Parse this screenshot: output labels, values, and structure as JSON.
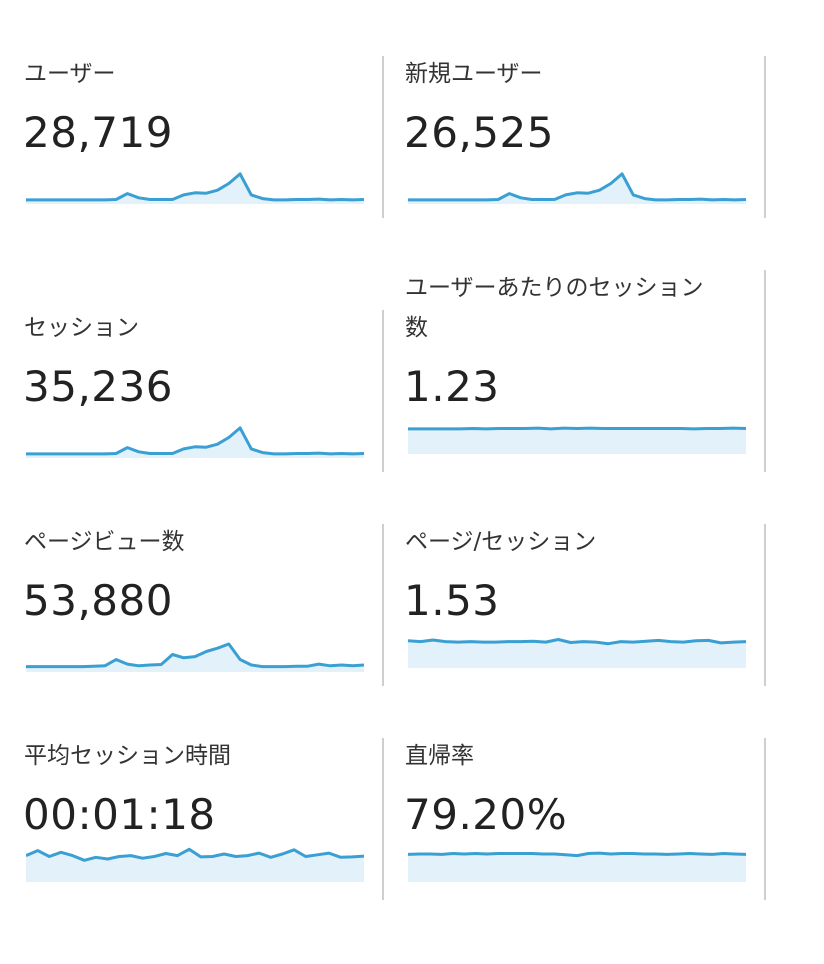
{
  "colors": {
    "line": "#3a9fd2",
    "fill": "#e3f1fa",
    "divider": "#cfcfcf"
  },
  "metrics": [
    {
      "label": "ユーザー",
      "value": "28,719",
      "spark": [
        5,
        5,
        5,
        5,
        5,
        5,
        5,
        5,
        6,
        20,
        10,
        6,
        6,
        6,
        17,
        22,
        21,
        28,
        44,
        67,
        17,
        8,
        5,
        5,
        6,
        6,
        7,
        5,
        6,
        5,
        6
      ]
    },
    {
      "label": "新規ユーザー",
      "value": "26,525",
      "spark": [
        5,
        5,
        5,
        5,
        5,
        5,
        5,
        5,
        6,
        20,
        10,
        6,
        6,
        6,
        17,
        22,
        21,
        28,
        44,
        67,
        17,
        8,
        5,
        5,
        6,
        6,
        7,
        5,
        6,
        5,
        6
      ]
    },
    {
      "label": "セッション",
      "value": "35,236",
      "spark": [
        5,
        5,
        5,
        5,
        5,
        5,
        5,
        5,
        6,
        20,
        10,
        6,
        6,
        6,
        17,
        22,
        21,
        28,
        44,
        67,
        17,
        8,
        5,
        5,
        6,
        6,
        7,
        5,
        6,
        5,
        6
      ]
    },
    {
      "label_lines": [
        "ユーザーあたりのセッション",
        "数"
      ],
      "value": "1.23",
      "spark": [
        55,
        55,
        55,
        55,
        55,
        56,
        55,
        56,
        56,
        56,
        57,
        55,
        57,
        56,
        57,
        56,
        56,
        56,
        56,
        56,
        56,
        56,
        55,
        56,
        56,
        57,
        56
      ]
    },
    {
      "label": "ページビュー数",
      "value": "53,880",
      "spark": [
        8,
        8,
        8,
        8,
        8,
        8,
        9,
        10,
        25,
        14,
        10,
        12,
        13,
        37,
        29,
        32,
        44,
        52,
        62,
        25,
        12,
        8,
        8,
        8,
        9,
        9,
        14,
        10,
        12,
        10,
        12
      ]
    },
    {
      "label": "ページ/セッション",
      "value": "1.53",
      "spark": [
        60,
        58,
        62,
        58,
        57,
        58,
        57,
        57,
        58,
        58,
        59,
        57,
        63,
        56,
        58,
        57,
        53,
        58,
        57,
        59,
        61,
        58,
        57,
        60,
        61,
        55,
        57,
        58
      ]
    },
    {
      "label": "平均セッション時間",
      "value": "00:01:18",
      "spark": [
        58,
        70,
        56,
        66,
        58,
        47,
        54,
        50,
        56,
        58,
        52,
        56,
        63,
        58,
        73,
        55,
        56,
        62,
        56,
        58,
        64,
        54,
        62,
        72,
        56,
        60,
        64,
        54,
        55,
        57
      ]
    },
    {
      "label": "直帰率",
      "value": "79.20%",
      "spark": [
        61,
        62,
        62,
        61,
        63,
        62,
        63,
        62,
        63,
        63,
        63,
        63,
        62,
        62,
        60,
        58,
        63,
        64,
        62,
        63,
        63,
        62,
        62,
        61,
        62,
        63,
        62,
        61,
        63,
        62,
        61
      ]
    }
  ]
}
